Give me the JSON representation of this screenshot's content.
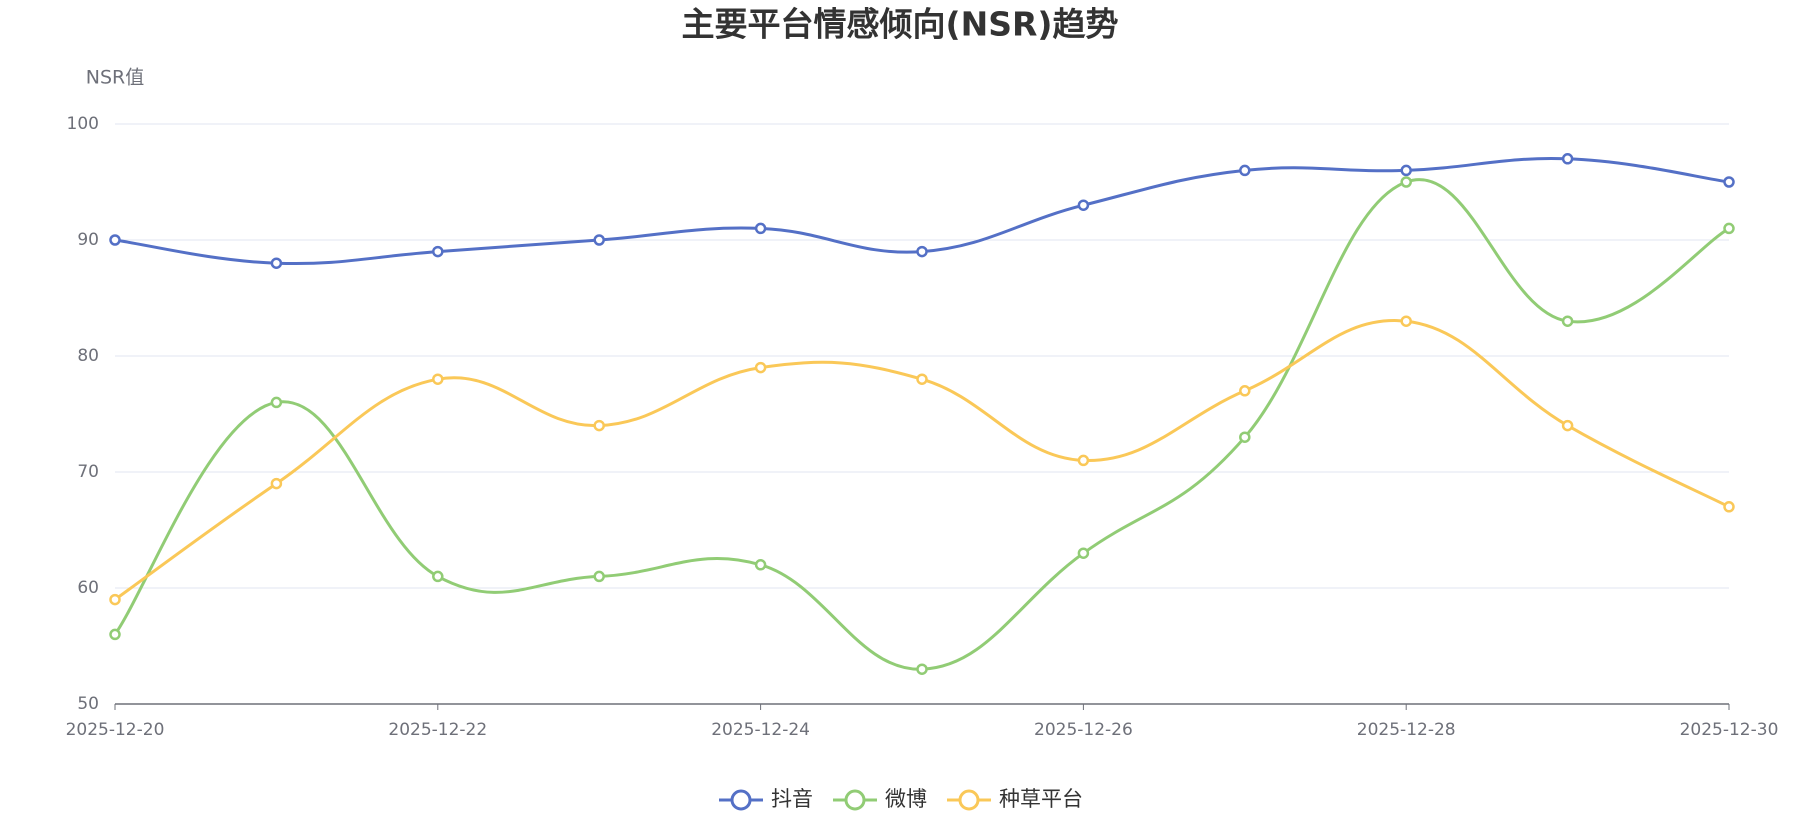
{
  "chart_data": {
    "type": "line",
    "title": "主要平台情感倾向(NSR)趋势",
    "y_axis_label": "NSR值",
    "categories": [
      "2025-12-20",
      null,
      "2025-12-22",
      null,
      "2025-12-24",
      null,
      "2025-12-26",
      null,
      "2025-12-28",
      null,
      "2025-12-30"
    ],
    "series": [
      {
        "name": "抖音",
        "color": "#5470c6",
        "values": [
          90,
          88,
          89,
          90,
          91,
          89,
          93,
          96,
          96,
          97,
          95
        ]
      },
      {
        "name": "微博",
        "color": "#91cc75",
        "values": [
          56,
          76,
          61,
          61,
          62,
          53,
          63,
          73,
          95,
          83,
          91
        ]
      },
      {
        "name": "种草平台",
        "color": "#fac858",
        "values": [
          59,
          69,
          78,
          74,
          79,
          78,
          71,
          77,
          83,
          74,
          67
        ]
      }
    ],
    "ylim": [
      50,
      100
    ],
    "yticks": [
      50,
      60,
      70,
      80,
      90,
      100
    ],
    "grid": true,
    "smooth": true,
    "legend": "bottom"
  }
}
